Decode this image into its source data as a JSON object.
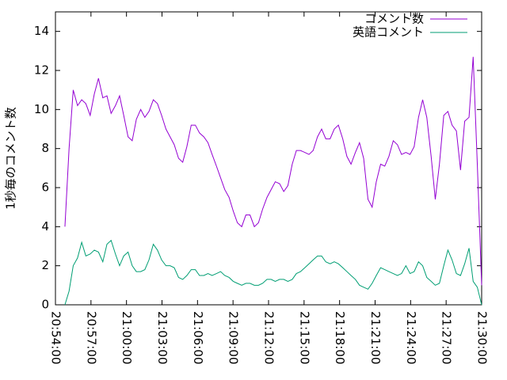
{
  "chart_data": {
    "type": "line",
    "ylabel": "1秒毎のコメント数",
    "x": [
      "20:54:48",
      "20:55:09",
      "20:55:30",
      "20:55:52",
      "20:56:13",
      "20:56:34",
      "20:56:56",
      "20:57:17",
      "20:57:38",
      "20:58:00",
      "20:58:21",
      "20:58:42",
      "20:59:04",
      "20:59:25",
      "20:59:46",
      "21:00:08",
      "21:00:29",
      "21:00:50",
      "21:01:12",
      "21:01:33",
      "21:01:54",
      "21:02:16",
      "21:02:37",
      "21:02:58",
      "21:03:20",
      "21:03:41",
      "21:04:02",
      "21:04:24",
      "21:04:45",
      "21:05:06",
      "21:05:28",
      "21:05:49",
      "21:06:10",
      "21:06:32",
      "21:06:53",
      "21:07:14",
      "21:07:36",
      "21:07:57",
      "21:08:18",
      "21:08:40",
      "21:09:01",
      "21:09:22",
      "21:09:44",
      "21:10:05",
      "21:10:26",
      "21:10:48",
      "21:11:09",
      "21:11:30",
      "21:11:52",
      "21:12:13",
      "21:12:34",
      "21:12:56",
      "21:13:17",
      "21:13:38",
      "21:14:00",
      "21:14:21",
      "21:14:42",
      "21:15:04",
      "21:15:25",
      "21:15:46",
      "21:16:08",
      "21:16:29",
      "21:16:50",
      "21:17:12",
      "21:17:33",
      "21:17:54",
      "21:18:16",
      "21:18:37",
      "21:18:58",
      "21:19:20",
      "21:19:41",
      "21:20:02",
      "21:20:24",
      "21:20:45",
      "21:21:06",
      "21:21:28",
      "21:21:49",
      "21:22:10",
      "21:22:32",
      "21:22:53",
      "21:23:14",
      "21:23:36",
      "21:23:57",
      "21:24:18",
      "21:24:40",
      "21:25:01",
      "21:25:22",
      "21:25:44",
      "21:26:05",
      "21:26:26",
      "21:26:48",
      "21:27:09",
      "21:27:30",
      "21:27:52",
      "21:28:13",
      "21:28:34",
      "21:28:56",
      "21:29:17",
      "21:29:38",
      "21:30:00"
    ],
    "series": [
      {
        "name": "コメント数",
        "color": "#9400d3",
        "values": [
          4,
          8,
          11,
          10.2,
          10.5,
          10.3,
          9.7,
          10.8,
          11.6,
          10.6,
          10.7,
          9.8,
          10.2,
          10.7,
          9.7,
          8.6,
          8.4,
          9.5,
          10,
          9.6,
          9.9,
          10.5,
          10.3,
          9.7,
          9,
          8.6,
          8.2,
          7.5,
          7.3,
          8.1,
          9.2,
          9.2,
          8.8,
          8.6,
          8.3,
          7.7,
          7.1,
          6.5,
          5.9,
          5.5,
          4.8,
          4.2,
          4,
          4.6,
          4.6,
          4,
          4.2,
          4.9,
          5.5,
          5.9,
          6.3,
          6.2,
          5.8,
          6.1,
          7.2,
          7.9,
          7.9,
          7.8,
          7.7,
          7.9,
          8.6,
          9,
          8.5,
          8.5,
          9,
          9.2,
          8.5,
          7.6,
          7.2,
          7.8,
          8.3,
          7.5,
          5.4,
          5,
          6.3,
          7.2,
          7.1,
          7.6,
          8.4,
          8.2,
          7.7,
          7.8,
          7.7,
          8.1,
          9.6,
          10.5,
          9.6,
          7.6,
          5.4,
          7.2,
          9.7,
          9.9,
          9.2,
          8.9,
          6.9,
          9.4,
          9.6,
          12.7,
          7.2,
          1
        ]
      },
      {
        "name": "英語コメント",
        "color": "#009e73",
        "values": [
          0,
          0.7,
          2,
          2.4,
          3.2,
          2.5,
          2.6,
          2.8,
          2.7,
          2.2,
          3.1,
          3.3,
          2.6,
          2,
          2.5,
          2.7,
          2,
          1.7,
          1.7,
          1.8,
          2.3,
          3.1,
          2.8,
          2.3,
          2,
          2,
          1.9,
          1.4,
          1.3,
          1.5,
          1.8,
          1.8,
          1.5,
          1.5,
          1.6,
          1.5,
          1.6,
          1.7,
          1.5,
          1.4,
          1.2,
          1.1,
          1,
          1.1,
          1.1,
          1,
          1,
          1.1,
          1.3,
          1.3,
          1.2,
          1.3,
          1.3,
          1.2,
          1.3,
          1.6,
          1.7,
          1.9,
          2.1,
          2.3,
          2.5,
          2.5,
          2.2,
          2.1,
          2.2,
          2.1,
          1.9,
          1.7,
          1.5,
          1.3,
          1,
          0.9,
          0.8,
          1.1,
          1.5,
          1.9,
          1.8,
          1.7,
          1.6,
          1.5,
          1.6,
          2,
          1.6,
          1.7,
          2.2,
          2,
          1.4,
          1.2,
          1,
          1.1,
          2,
          2.8,
          2.3,
          1.6,
          1.5,
          2.1,
          2.9,
          1.2,
          0.9,
          0
        ]
      }
    ],
    "xlim": [
      "20:54:00",
      "21:30:00"
    ],
    "xticks": [
      "20:54:00",
      "20:57:00",
      "21:00:00",
      "21:03:00",
      "21:06:00",
      "21:09:00",
      "21:12:00",
      "21:15:00",
      "21:18:00",
      "21:21:00",
      "21:24:00",
      "21:27:00",
      "21:30:00"
    ],
    "ylim": [
      0,
      15
    ],
    "yticks": [
      0,
      2,
      4,
      6,
      8,
      10,
      12,
      14
    ],
    "legend": "top-right"
  }
}
